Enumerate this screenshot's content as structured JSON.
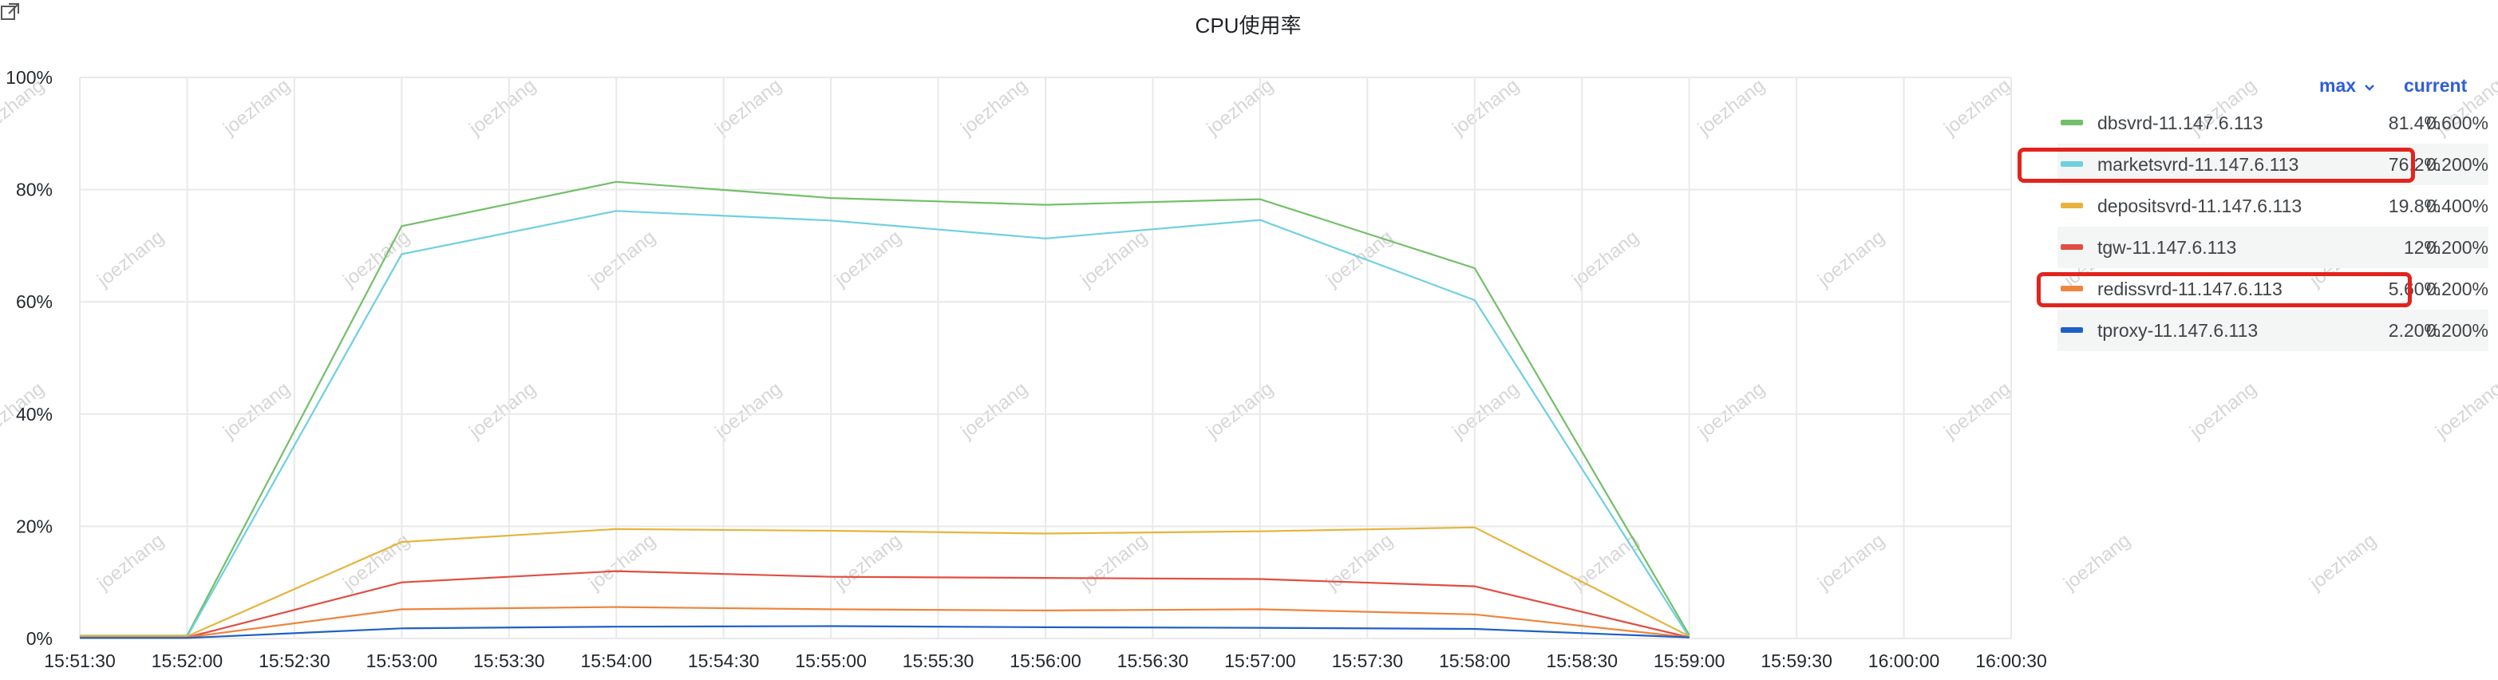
{
  "chart_data": {
    "type": "line",
    "title": "CPU使用率",
    "x": [
      "15:51:30",
      "15:52:00",
      "15:52:30",
      "15:53:00",
      "15:53:30",
      "15:54:00",
      "15:54:30",
      "15:55:00",
      "15:55:30",
      "15:56:00",
      "15:56:30",
      "15:57:00",
      "15:57:30",
      "15:58:00",
      "15:58:30",
      "15:59:00",
      "15:59:30",
      "16:00:00",
      "16:00:30"
    ],
    "ylim": [
      0,
      100
    ],
    "y_ticks": [
      "0%",
      "20%",
      "40%",
      "60%",
      "80%",
      "100%"
    ],
    "grid": true,
    "legend_placement": "right",
    "legend_columns": [
      "max",
      "current"
    ],
    "series": [
      {
        "name": "dbsvrd-11.147.6.113",
        "color": "#73bf69",
        "max": "81.4%",
        "current": "0.600%",
        "points": [
          [
            "15:51:30",
            0.5
          ],
          [
            "15:52:00",
            0.5
          ],
          [
            "15:53:00",
            73.5
          ],
          [
            "15:54:00",
            81.4
          ],
          [
            "15:55:00",
            78.5
          ],
          [
            "15:56:00",
            77.3
          ],
          [
            "15:57:00",
            78.3
          ],
          [
            "15:58:00",
            66
          ],
          [
            "15:59:00",
            0.6
          ]
        ]
      },
      {
        "name": "marketsvrd-11.147.6.113",
        "color": "#6ed0e0",
        "max": "76.2%",
        "current": "0.200%",
        "points": [
          [
            "15:51:30",
            0.3
          ],
          [
            "15:52:00",
            0.3
          ],
          [
            "15:53:00",
            68.5
          ],
          [
            "15:54:00",
            76.2
          ],
          [
            "15:55:00",
            74.5
          ],
          [
            "15:56:00",
            71.3
          ],
          [
            "15:57:00",
            74.6
          ],
          [
            "15:58:00",
            60.3
          ],
          [
            "15:59:00",
            0.2
          ]
        ]
      },
      {
        "name": "depositsvrd-11.147.6.113",
        "color": "#e6b43c",
        "max": "19.8%",
        "current": "0.400%",
        "points": [
          [
            "15:51:30",
            0.4
          ],
          [
            "15:52:00",
            0.4
          ],
          [
            "15:53:00",
            17.2
          ],
          [
            "15:54:00",
            19.5
          ],
          [
            "15:55:00",
            19.2
          ],
          [
            "15:56:00",
            18.7
          ],
          [
            "15:57:00",
            19.1
          ],
          [
            "15:58:00",
            19.8
          ],
          [
            "15:59:00",
            0.4
          ]
        ]
      },
      {
        "name": "tgw-11.147.6.113",
        "color": "#e24d42",
        "max": "12%",
        "current": "0.200%",
        "points": [
          [
            "15:51:30",
            0.2
          ],
          [
            "15:52:00",
            0.2
          ],
          [
            "15:53:00",
            10
          ],
          [
            "15:54:00",
            12
          ],
          [
            "15:55:00",
            11
          ],
          [
            "15:56:00",
            10.8
          ],
          [
            "15:57:00",
            10.6
          ],
          [
            "15:58:00",
            9.3
          ],
          [
            "15:59:00",
            0.2
          ]
        ]
      },
      {
        "name": "redissvrd-11.147.6.113",
        "color": "#ef843c",
        "max": "5.60%",
        "current": "0.200%",
        "points": [
          [
            "15:51:30",
            0.2
          ],
          [
            "15:52:00",
            0.2
          ],
          [
            "15:53:00",
            5.2
          ],
          [
            "15:54:00",
            5.6
          ],
          [
            "15:55:00",
            5.2
          ],
          [
            "15:56:00",
            5
          ],
          [
            "15:57:00",
            5.2
          ],
          [
            "15:58:00",
            4.3
          ],
          [
            "15:59:00",
            0.2
          ]
        ]
      },
      {
        "name": "tproxy-11.147.6.113",
        "color": "#1f60c4",
        "max": "2.20%",
        "current": "0.200%",
        "points": [
          [
            "15:51:30",
            0.1
          ],
          [
            "15:52:00",
            0.1
          ],
          [
            "15:53:00",
            1.8
          ],
          [
            "15:54:00",
            2.1
          ],
          [
            "15:55:00",
            2.2
          ],
          [
            "15:56:00",
            2
          ],
          [
            "15:57:00",
            1.9
          ],
          [
            "15:58:00",
            1.7
          ],
          [
            "15:59:00",
            0.2
          ]
        ]
      }
    ],
    "highlighted_series": [
      "marketsvrd-11.147.6.113",
      "redissvrd-11.147.6.113"
    ],
    "highlight_color": "#e3231c",
    "watermark": "joezhang"
  },
  "legend_header": {
    "max_label": "max",
    "current_label": "current",
    "sort_indicator": "chevron-down-icon"
  },
  "icons": {
    "panel_link": "external-link-icon"
  }
}
